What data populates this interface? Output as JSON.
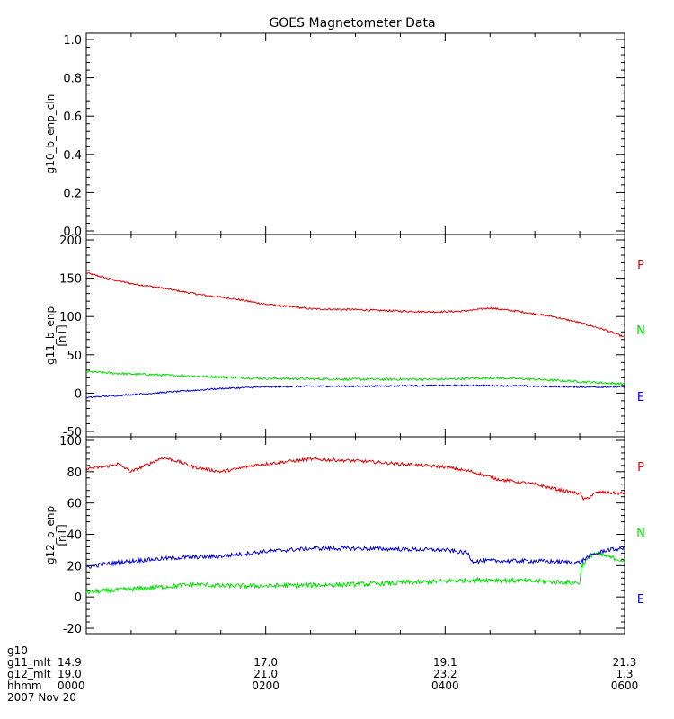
{
  "title": "GOES Magnetometer Data",
  "colors": {
    "P": "#e00000",
    "N": "#00dd00",
    "E": "#0000d0",
    "axis": "#000000"
  },
  "chart_data": [
    {
      "type": "line",
      "ylabel": "g10_b_enp_cln",
      "yunit": "",
      "ylim": [
        0,
        1
      ],
      "yticks": [
        "0.0",
        "0.2",
        "0.4",
        "0.6",
        "0.8",
        "1.0"
      ],
      "yticks_values": [
        0,
        0.2,
        0.4,
        0.6,
        0.8,
        1.0
      ],
      "series": []
    },
    {
      "type": "line",
      "ylabel": "g11_b_enp",
      "yunit": "[nT]",
      "ylim": [
        -50,
        200
      ],
      "yticks": [
        "-50",
        "0",
        "50",
        "100",
        "150",
        "200"
      ],
      "yticks_values": [
        -50,
        0,
        50,
        100,
        150,
        200
      ],
      "series": [
        {
          "name": "P",
          "color": "#e00000",
          "noise": 1.2,
          "x": [
            0,
            0.1,
            0.3,
            0.5,
            0.8,
            1.0,
            1.3,
            1.6,
            2.0,
            2.5,
            3.0,
            3.5,
            3.9,
            4.2,
            4.5,
            4.8,
            5.2,
            5.5,
            5.8,
            6.0
          ],
          "y": [
            157,
            154,
            148,
            143,
            138,
            134,
            128,
            124,
            116,
            110,
            109,
            107,
            106,
            107,
            111,
            107,
            100,
            92,
            82,
            73
          ]
        },
        {
          "name": "N",
          "color": "#00dd00",
          "noise": 1.5,
          "x": [
            0,
            0.3,
            0.5,
            1.0,
            1.5,
            2.0,
            3.0,
            4.0,
            4.5,
            5.0,
            5.5,
            6.0
          ],
          "y": [
            28,
            26,
            25,
            23,
            21,
            19,
            18,
            18,
            20,
            18,
            15,
            12
          ]
        },
        {
          "name": "E",
          "color": "#0000d0",
          "noise": 1.0,
          "x": [
            0,
            0.1,
            0.5,
            1.0,
            1.5,
            2.0,
            2.5,
            3.0,
            4.0,
            4.5,
            5.0,
            5.5,
            6.0
          ],
          "y": [
            -6,
            -5,
            -2,
            2,
            6,
            8,
            9,
            9,
            10,
            10,
            9,
            8,
            8
          ]
        }
      ]
    },
    {
      "type": "line",
      "ylabel": "g12_b_enp",
      "yunit": "[nT]",
      "ylim": [
        -20,
        100
      ],
      "yticks": [
        "-20",
        "0",
        "20",
        "40",
        "60",
        "80",
        "100"
      ],
      "yticks_values": [
        -20,
        0,
        20,
        40,
        60,
        80,
        100
      ],
      "series": [
        {
          "name": "P",
          "color": "#e00000",
          "noise": 1.0,
          "x": [
            0,
            0.2,
            0.35,
            0.5,
            0.7,
            0.85,
            1.0,
            1.2,
            1.5,
            1.7,
            1.85,
            2.0,
            2.5,
            3.0,
            3.5,
            4.0,
            4.3,
            4.6,
            5.0,
            5.3,
            5.5,
            5.55,
            5.7,
            6.0
          ],
          "y": [
            82,
            83,
            85,
            80,
            85,
            89,
            87,
            83,
            80,
            82,
            84,
            85,
            88,
            87,
            85,
            83,
            80,
            75,
            72,
            68,
            66,
            62,
            67,
            66
          ]
        },
        {
          "name": "N",
          "color": "#00dd00",
          "noise": 1.5,
          "x": [
            0,
            0.5,
            1.0,
            1.2,
            1.5,
            2.0,
            3.0,
            4.0,
            4.4,
            5.0,
            5.5,
            5.52,
            5.65,
            5.8,
            6.0
          ],
          "y": [
            3,
            5,
            7,
            8,
            7,
            7,
            8,
            10,
            11,
            10,
            9,
            20,
            28,
            26,
            23
          ]
        },
        {
          "name": "E",
          "color": "#0000d0",
          "noise": 1.3,
          "x": [
            0,
            0.2,
            0.5,
            1.0,
            1.5,
            2.0,
            2.5,
            3.0,
            4.0,
            4.25,
            4.3,
            5.0,
            5.5,
            5.6,
            5.8,
            6.0
          ],
          "y": [
            19,
            21,
            23,
            25,
            26,
            29,
            31,
            31,
            30,
            28,
            23,
            23,
            22,
            26,
            30,
            31
          ]
        }
      ]
    }
  ],
  "xaxis": {
    "xlim": [
      0,
      6
    ],
    "ticks_at": [
      0,
      2,
      4,
      6
    ],
    "rows": [
      {
        "label": "g10",
        "values": [
          "",
          "",
          "",
          ""
        ]
      },
      {
        "label": "g11_mlt",
        "values": [
          "14.9",
          "17.0",
          "19.1",
          "21.3"
        ]
      },
      {
        "label": "g12_mlt",
        "values": [
          "19.0",
          "21.0",
          "23.2",
          "1.3"
        ]
      },
      {
        "label": "hhmm",
        "values": [
          "0000",
          "0200",
          "0400",
          "0600"
        ]
      }
    ],
    "date": "2007 Nov 20"
  }
}
